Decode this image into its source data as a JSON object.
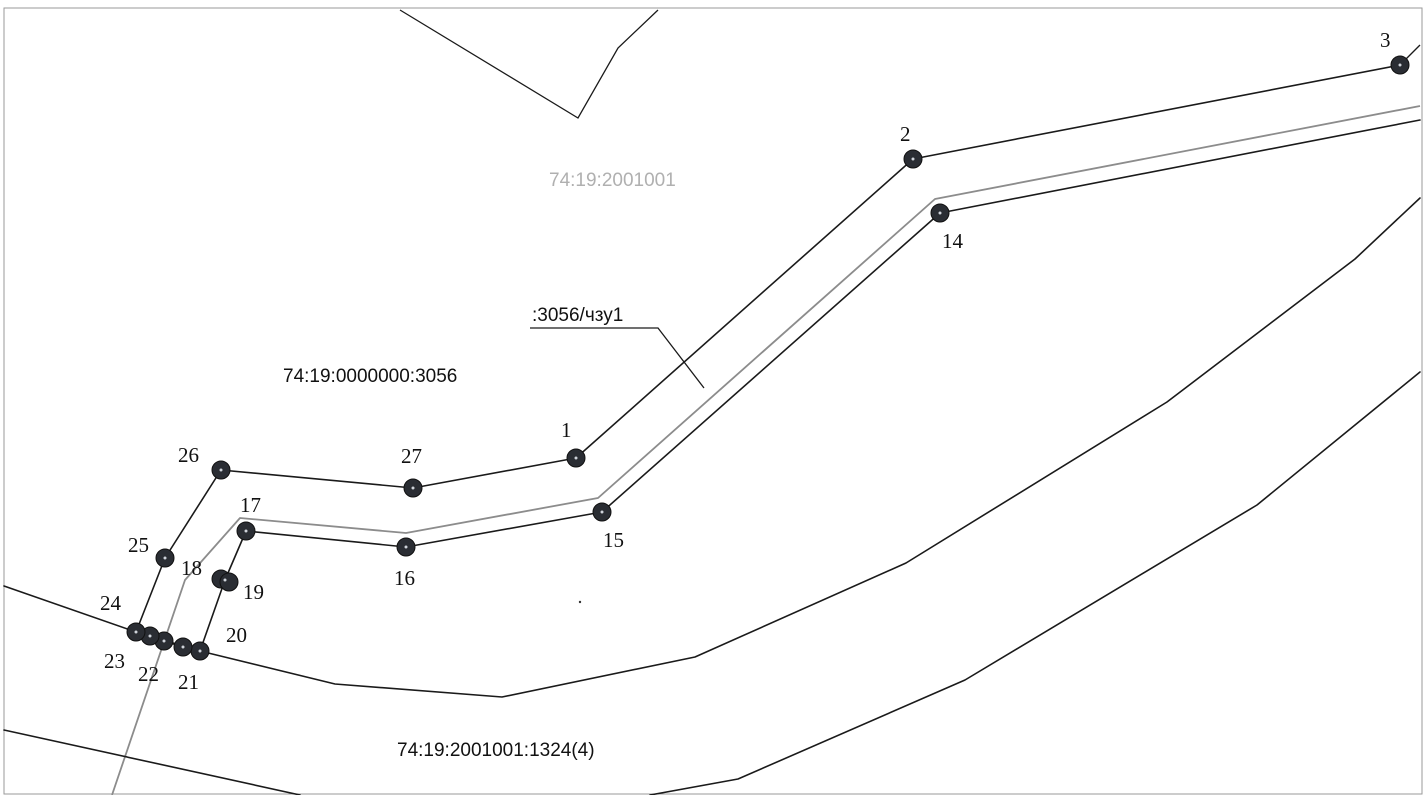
{
  "labels": {
    "block": "74:19:2001001",
    "parcel_main": "74:19:0000000:3056",
    "easement": ":3056/чзу1",
    "parcel_south": "74:19:2001001:1324(4)"
  },
  "points": {
    "p1": "1",
    "p2": "2",
    "p3": "3",
    "p14": "14",
    "p15": "15",
    "p16": "16",
    "p17": "17",
    "p18": "18",
    "p19": "19",
    "p20": "20",
    "p21": "21",
    "p22": "22",
    "p23": "23",
    "p24": "24",
    "p25": "25",
    "p26": "26",
    "p27": "27"
  },
  "colors": {
    "boundary": "#1a1a1a",
    "easement_line": "#8c8c8c",
    "block_label": "#b0b0b0",
    "point_fill": "#2a2d33"
  }
}
